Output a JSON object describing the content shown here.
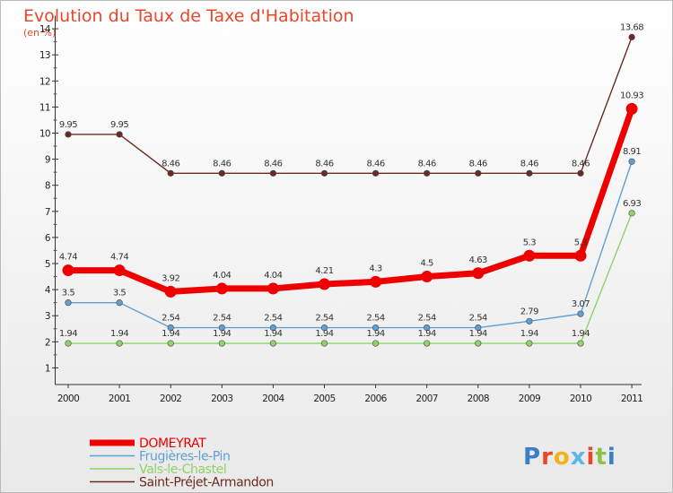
{
  "title": "Evolution du Taux de Taxe d'Habitation",
  "subtitle": "(en %)",
  "brand": {
    "letters": [
      {
        "ch": "P",
        "color": "#3a7ec8"
      },
      {
        "ch": "r",
        "color": "#e8482a"
      },
      {
        "ch": "o",
        "color": "#f2b21b"
      },
      {
        "ch": "x",
        "color": "#5cb7e5"
      },
      {
        "ch": "i",
        "color": "#e8482a"
      },
      {
        "ch": "t",
        "color": "#8bc34a"
      },
      {
        "ch": "i",
        "color": "#3a7ec8"
      }
    ]
  },
  "chart_data": {
    "type": "line",
    "x": [
      "2000",
      "2001",
      "2002",
      "2003",
      "2004",
      "2005",
      "2006",
      "2007",
      "2008",
      "2009",
      "2010",
      "2011"
    ],
    "ylim": [
      0.5,
      14.5
    ],
    "yticks": [
      1,
      2,
      3,
      4,
      5,
      6,
      7,
      8,
      9,
      10,
      11,
      12,
      13,
      14
    ],
    "grid": false,
    "legend_position": "bottom-left",
    "series": [
      {
        "name": "Saint-Préjet-Armandon",
        "color": "#6b2a22",
        "values": [
          9.95,
          9.95,
          8.46,
          8.46,
          8.46,
          8.46,
          8.46,
          8.46,
          8.46,
          8.46,
          8.46,
          13.68
        ],
        "labels": [
          "9.95",
          "9.95",
          "8.46",
          "8.46",
          "8.46",
          "8.46",
          "8.46",
          "8.46",
          "8.46",
          "8.46",
          "8.46",
          "13.68"
        ]
      },
      {
        "name": "Vals-le-Chastel",
        "color": "#8fd16a",
        "values": [
          1.94,
          1.94,
          1.94,
          1.94,
          1.94,
          1.94,
          1.94,
          1.94,
          1.94,
          1.94,
          1.94,
          6.93
        ],
        "labels": [
          "1.94",
          "1.94",
          "1.94",
          "1.94",
          "1.94",
          "1.94",
          "1.94",
          "1.94",
          "1.94",
          "1.94",
          "1.94",
          "6.93"
        ]
      },
      {
        "name": "Frugières-le-Pin",
        "color": "#5f9fd2",
        "values": [
          3.5,
          3.5,
          2.54,
          2.54,
          2.54,
          2.54,
          2.54,
          2.54,
          2.54,
          2.79,
          3.07,
          8.91
        ],
        "labels": [
          "3.5",
          "3.5",
          "2.54",
          "2.54",
          "2.54",
          "2.54",
          "2.54",
          "2.54",
          "2.54",
          "2.79",
          "3.07",
          "8.91"
        ]
      },
      {
        "name": "DOMEYRAT",
        "color": "#ee0000",
        "values": [
          4.74,
          4.74,
          3.92,
          4.04,
          4.04,
          4.21,
          4.3,
          4.5,
          4.63,
          5.3,
          5.3,
          10.93
        ],
        "labels": [
          "4.74",
          "4.74",
          "3.92",
          "4.04",
          "4.04",
          "4.21",
          "4.3",
          "4.5",
          "4.63",
          "5.3",
          "5.3",
          "10.93"
        ]
      }
    ],
    "legend_order": [
      "DOMEYRAT",
      "Frugières-le-Pin",
      "Vals-le-Chastel",
      "Saint-Préjet-Armandon"
    ]
  }
}
